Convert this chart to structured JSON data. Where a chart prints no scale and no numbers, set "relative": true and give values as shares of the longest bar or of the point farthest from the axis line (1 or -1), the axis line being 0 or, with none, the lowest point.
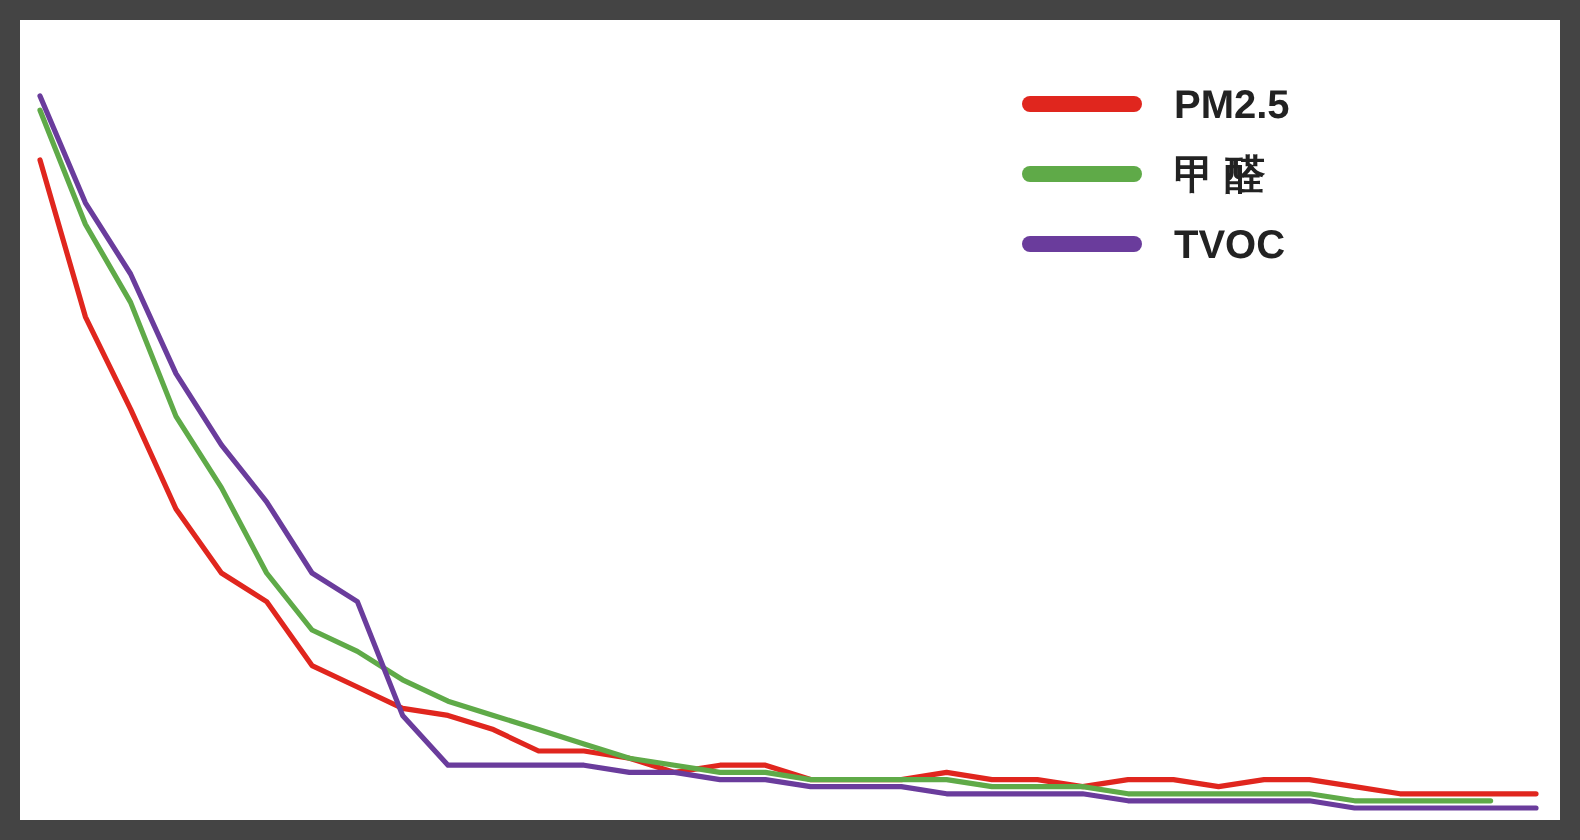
{
  "chart_data": {
    "type": "line",
    "relative": true,
    "legend": "top right",
    "grid": false,
    "marker": "none",
    "line_style": "solid",
    "categories": [
      null,
      null,
      null,
      null,
      null,
      null,
      null,
      null,
      null,
      null,
      null,
      null,
      null,
      null,
      null,
      null,
      null,
      null,
      null,
      null,
      null,
      null,
      null,
      null,
      null,
      null,
      null,
      null,
      null,
      null,
      null,
      null,
      null,
      null
    ],
    "series": [
      {
        "name": "PM2.5",
        "color": "#e0261e",
        "values": [
          0.91,
          0.69,
          0.56,
          0.42,
          0.33,
          0.29,
          0.2,
          0.17,
          0.14,
          0.13,
          0.11,
          0.08,
          0.08,
          0.07,
          0.05,
          0.06,
          0.06,
          0.04,
          0.04,
          0.04,
          0.05,
          0.04,
          0.04,
          0.03,
          0.04,
          0.04,
          0.03,
          0.04,
          0.04,
          0.03,
          0.02,
          0.02,
          0.02,
          0.02
        ]
      },
      {
        "name": "甲 醛",
        "color": "#5faa48",
        "values": [
          0.98,
          0.82,
          0.71,
          0.55,
          0.45,
          0.33,
          0.25,
          0.22,
          0.18,
          0.15,
          0.13,
          0.11,
          0.09,
          0.07,
          0.06,
          0.05,
          0.05,
          0.04,
          0.04,
          0.04,
          0.04,
          0.03,
          0.03,
          0.03,
          0.02,
          0.02,
          0.02,
          0.02,
          0.02,
          0.01,
          0.01,
          0.01,
          0.01,
          null
        ]
      },
      {
        "name": "TVOC",
        "color": "#6a3c9c",
        "values": [
          1.0,
          0.85,
          0.75,
          0.61,
          0.51,
          0.43,
          0.33,
          0.29,
          0.13,
          0.06,
          0.06,
          0.06,
          0.06,
          0.05,
          0.05,
          0.04,
          0.04,
          0.03,
          0.03,
          0.03,
          0.02,
          0.02,
          0.02,
          0.02,
          0.01,
          0.01,
          0.01,
          0.01,
          0.01,
          0,
          0,
          0,
          0,
          0
        ]
      }
    ]
  }
}
